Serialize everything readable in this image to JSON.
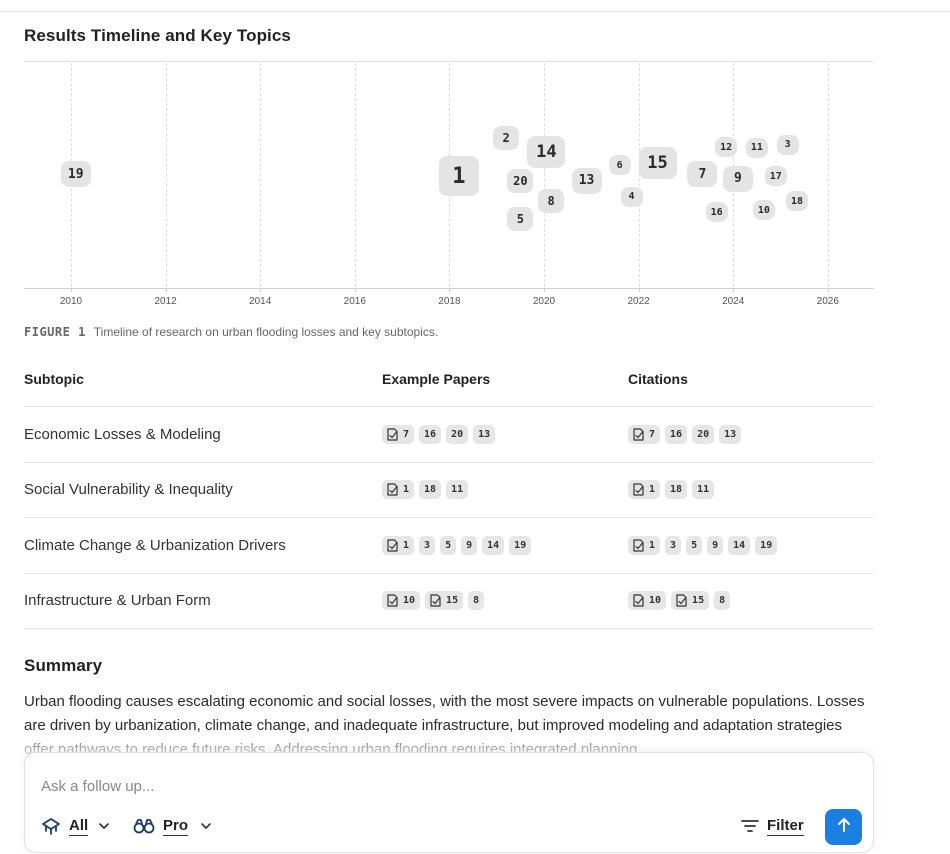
{
  "timeline": {
    "title": "Results Timeline and Key Topics",
    "ticks": [
      "2010",
      "2012",
      "2014",
      "2016",
      "2018",
      "2020",
      "2022",
      "2024",
      "2026"
    ],
    "papers": [
      {
        "id": "19",
        "year": 2010.1,
        "lane": 0.0,
        "size": "m"
      },
      {
        "id": "1",
        "year": 2018.2,
        "lane": -0.05,
        "size": "xl"
      },
      {
        "id": "2",
        "year": 2019.2,
        "lane": 0.8,
        "size": "s"
      },
      {
        "id": "20",
        "year": 2019.5,
        "lane": -0.15,
        "size": "s"
      },
      {
        "id": "5",
        "year": 2019.5,
        "lane": -1.0,
        "size": "s"
      },
      {
        "id": "14",
        "year": 2020.05,
        "lane": 0.5,
        "size": "l"
      },
      {
        "id": "8",
        "year": 2020.15,
        "lane": -0.6,
        "size": "s"
      },
      {
        "id": "13",
        "year": 2020.9,
        "lane": -0.15,
        "size": "m"
      },
      {
        "id": "6",
        "year": 2021.6,
        "lane": 0.2,
        "size": "xs"
      },
      {
        "id": "4",
        "year": 2021.85,
        "lane": -0.5,
        "size": "xs"
      },
      {
        "id": "15",
        "year": 2022.4,
        "lane": 0.25,
        "size": "l"
      },
      {
        "id": "7",
        "year": 2023.35,
        "lane": 0.0,
        "size": "m"
      },
      {
        "id": "16",
        "year": 2023.65,
        "lane": -0.85,
        "size": "xs"
      },
      {
        "id": "12",
        "year": 2023.85,
        "lane": 0.6,
        "size": "xs"
      },
      {
        "id": "9",
        "year": 2024.1,
        "lane": -0.1,
        "size": "m"
      },
      {
        "id": "11",
        "year": 2024.5,
        "lane": 0.58,
        "size": "xs"
      },
      {
        "id": "10",
        "year": 2024.65,
        "lane": -0.8,
        "size": "xs"
      },
      {
        "id": "17",
        "year": 2024.9,
        "lane": -0.05,
        "size": "xs"
      },
      {
        "id": "3",
        "year": 2025.15,
        "lane": 0.65,
        "size": "xs"
      },
      {
        "id": "18",
        "year": 2025.35,
        "lane": -0.6,
        "size": "xs"
      }
    ]
  },
  "figure": {
    "label": "FIGURE 1",
    "caption": "Timeline of research on urban flooding losses and key subtopics."
  },
  "table": {
    "headers": [
      "Subtopic",
      "Example Papers",
      "Citations"
    ],
    "rows": [
      {
        "subtopic": "Economic Losses & Modeling",
        "papers": [
          {
            "label": "7",
            "icon": true
          },
          {
            "label": "16"
          },
          {
            "label": "20"
          },
          {
            "label": "13"
          }
        ],
        "citations": [
          {
            "label": "7",
            "icon": true
          },
          {
            "label": "16"
          },
          {
            "label": "20"
          },
          {
            "label": "13"
          }
        ]
      },
      {
        "subtopic": "Social Vulnerability & Inequality",
        "papers": [
          {
            "label": "1",
            "icon": true
          },
          {
            "label": "18"
          },
          {
            "label": "11"
          }
        ],
        "citations": [
          {
            "label": "1",
            "icon": true
          },
          {
            "label": "18"
          },
          {
            "label": "11"
          }
        ]
      },
      {
        "subtopic": "Climate Change & Urbanization Drivers",
        "papers": [
          {
            "label": "1",
            "icon": true
          },
          {
            "label": "3"
          },
          {
            "label": "5"
          },
          {
            "label": "9"
          },
          {
            "label": "14"
          },
          {
            "label": "19"
          }
        ],
        "citations": [
          {
            "label": "1",
            "icon": true
          },
          {
            "label": "3"
          },
          {
            "label": "5"
          },
          {
            "label": "9"
          },
          {
            "label": "14"
          },
          {
            "label": "19"
          }
        ]
      },
      {
        "subtopic": "Infrastructure & Urban Form",
        "papers": [
          {
            "label": "10",
            "icon": true
          },
          {
            "label": "15",
            "icon": true
          },
          {
            "label": "8"
          }
        ],
        "citations": [
          {
            "label": "10",
            "icon": true
          },
          {
            "label": "15",
            "icon": true
          },
          {
            "label": "8"
          }
        ]
      }
    ]
  },
  "summary": {
    "title": "Summary",
    "text": "Urban flooding causes escalating economic and social losses, with the most severe impacts on vulnerable populations. Losses are driven by urbanization, climate change, and inadequate infrastructure, but improved modeling and adaptation strategies offer pathways to reduce future risks. Addressing urban flooding requires integrated planning."
  },
  "followup": {
    "placeholder": "Ask a follow up...",
    "source_label": "All",
    "mode_label": "Pro",
    "filter_label": "Filter"
  },
  "colors": {
    "accent": "#1a7fe0",
    "chip_bg": "#e6e6e6",
    "bubble_bg": "#e4e4e4"
  }
}
